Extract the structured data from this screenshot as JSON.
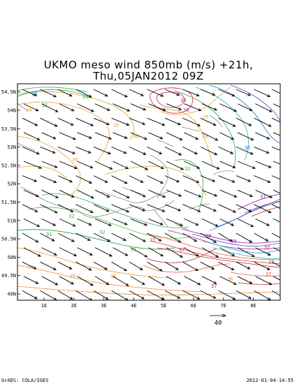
{
  "title": {
    "line1": "UKMO meso wind 850mb (m/s)  +21h,",
    "line2": "Thu,05JAN2012 09Z"
  },
  "axes": {
    "x_ticks": [
      "1E",
      "2E",
      "3E",
      "4E",
      "5E",
      "6E",
      "7E",
      "8E"
    ],
    "y_ticks": [
      "49N",
      "49.5N",
      "50N",
      "50.5N",
      "51N",
      "51.5N",
      "52N",
      "52.5N",
      "53N",
      "53.5N",
      "54N",
      "54.5N"
    ]
  },
  "reference_vector": {
    "label": "40"
  },
  "contour_labels": [
    "28",
    "31",
    "32",
    "33",
    "34",
    "35",
    "36",
    "37",
    "38",
    "39"
  ],
  "footer": {
    "left": "GrADS: COLA/IGES",
    "right": "2012-01-04-14:55"
  },
  "colors": {
    "frame": "#000000",
    "coast": "#8c8c8c",
    "arrow": "#000000"
  }
}
